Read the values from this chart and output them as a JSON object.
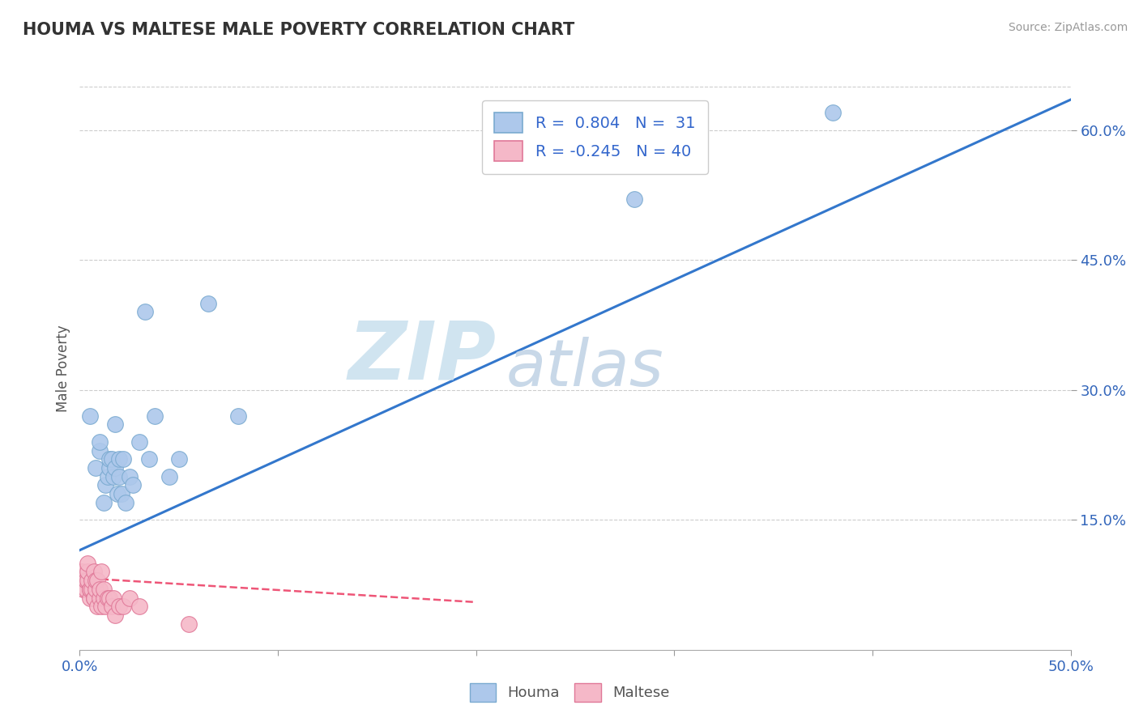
{
  "title": "HOUMA VS MALTESE MALE POVERTY CORRELATION CHART",
  "source": "Source: ZipAtlas.com",
  "ylabel": "Male Poverty",
  "xlim": [
    0.0,
    0.5
  ],
  "ylim": [
    0.0,
    0.65
  ],
  "xticks": [
    0.0,
    0.1,
    0.2,
    0.3,
    0.4,
    0.5
  ],
  "xticklabels": [
    "0.0%",
    "",
    "",
    "",
    "",
    "50.0%"
  ],
  "yticks_right": [
    0.15,
    0.3,
    0.45,
    0.6
  ],
  "ytick_right_labels": [
    "15.0%",
    "30.0%",
    "45.0%",
    "60.0%"
  ],
  "houma_R": 0.804,
  "houma_N": 31,
  "maltese_R": -0.245,
  "maltese_N": 40,
  "houma_color": "#adc8eb",
  "houma_edge": "#7aaad0",
  "maltese_color": "#f5b8c8",
  "maltese_edge": "#e07898",
  "houma_line_color": "#3377cc",
  "maltese_line_color": "#ee5577",
  "grid_color": "#cccccc",
  "background_color": "#ffffff",
  "watermark_zip": "ZIP",
  "watermark_atlas": "atlas",
  "houma_x": [
    0.005,
    0.008,
    0.01,
    0.01,
    0.012,
    0.013,
    0.014,
    0.015,
    0.015,
    0.016,
    0.017,
    0.018,
    0.018,
    0.019,
    0.02,
    0.02,
    0.021,
    0.022,
    0.023,
    0.025,
    0.027,
    0.03,
    0.033,
    0.035,
    0.038,
    0.045,
    0.05,
    0.065,
    0.08,
    0.28,
    0.38
  ],
  "houma_y": [
    0.27,
    0.21,
    0.23,
    0.24,
    0.17,
    0.19,
    0.2,
    0.21,
    0.22,
    0.22,
    0.2,
    0.21,
    0.26,
    0.18,
    0.2,
    0.22,
    0.18,
    0.22,
    0.17,
    0.2,
    0.19,
    0.24,
    0.39,
    0.22,
    0.27,
    0.2,
    0.22,
    0.4,
    0.27,
    0.52,
    0.62
  ],
  "maltese_x": [
    0.0,
    0.001,
    0.001,
    0.002,
    0.002,
    0.003,
    0.003,
    0.003,
    0.004,
    0.004,
    0.004,
    0.005,
    0.005,
    0.005,
    0.006,
    0.006,
    0.007,
    0.007,
    0.007,
    0.008,
    0.008,
    0.009,
    0.009,
    0.01,
    0.01,
    0.011,
    0.011,
    0.012,
    0.012,
    0.013,
    0.014,
    0.015,
    0.016,
    0.017,
    0.018,
    0.02,
    0.022,
    0.025,
    0.03,
    0.055
  ],
  "maltese_y": [
    0.08,
    0.08,
    0.09,
    0.07,
    0.07,
    0.07,
    0.08,
    0.08,
    0.08,
    0.09,
    0.1,
    0.06,
    0.07,
    0.07,
    0.07,
    0.08,
    0.09,
    0.06,
    0.06,
    0.07,
    0.08,
    0.08,
    0.05,
    0.06,
    0.07,
    0.09,
    0.05,
    0.06,
    0.07,
    0.05,
    0.06,
    0.06,
    0.05,
    0.06,
    0.04,
    0.05,
    0.05,
    0.06,
    0.05,
    0.03
  ],
  "houma_trendline_x": [
    0.0,
    0.5
  ],
  "houma_trendline_y": [
    0.115,
    0.635
  ],
  "maltese_trendline_x": [
    0.0,
    0.2
  ],
  "maltese_trendline_y": [
    0.083,
    0.055
  ]
}
